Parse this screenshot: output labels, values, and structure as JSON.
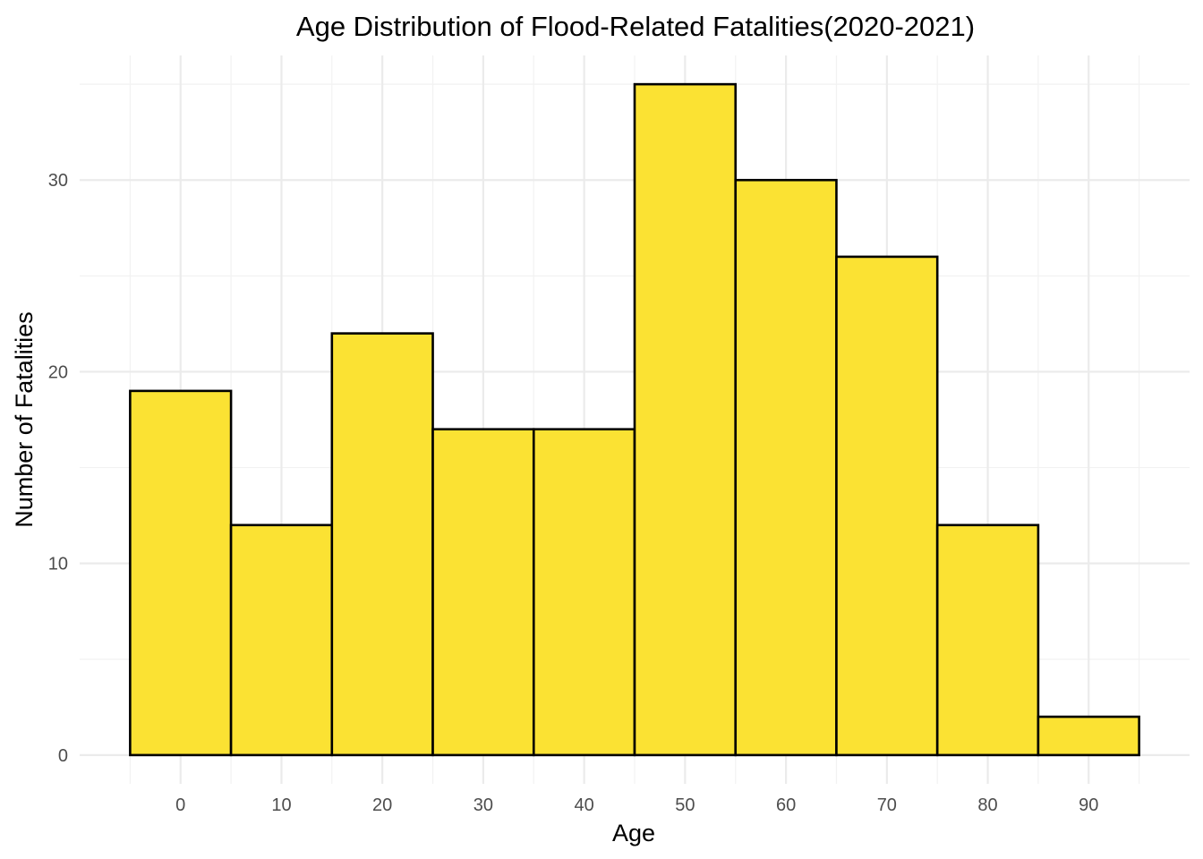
{
  "chart_data": {
    "type": "bar",
    "title": "Age Distribution of Flood-Related Fatalities(2020-2021)",
    "xlabel": "Age",
    "ylabel": "Number of Fatalities",
    "bins": [
      {
        "from": -5,
        "to": 5,
        "value": 19
      },
      {
        "from": 5,
        "to": 15,
        "value": 12
      },
      {
        "from": 15,
        "to": 25,
        "value": 22
      },
      {
        "from": 25,
        "to": 35,
        "value": 17
      },
      {
        "from": 35,
        "to": 45,
        "value": 17
      },
      {
        "from": 45,
        "to": 55,
        "value": 35
      },
      {
        "from": 55,
        "to": 65,
        "value": 30
      },
      {
        "from": 65,
        "to": 75,
        "value": 26
      },
      {
        "from": 75,
        "to": 85,
        "value": 12
      },
      {
        "from": 85,
        "to": 95,
        "value": 2
      }
    ],
    "x_ticks": [
      0,
      10,
      20,
      30,
      40,
      50,
      60,
      70,
      80,
      90
    ],
    "y_ticks": [
      0,
      10,
      20,
      30
    ],
    "xlim": [
      -10,
      100
    ],
    "ylim": [
      -1.5,
      36.5
    ],
    "grid": true,
    "bar_fill": "#FBE233",
    "bar_outline": "#000000"
  }
}
